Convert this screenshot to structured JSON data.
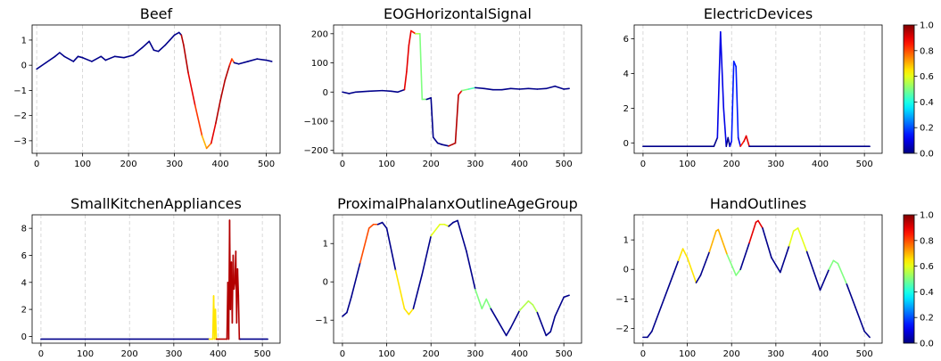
{
  "colormap": "jet",
  "line_color": "#00008b",
  "colorbar": {
    "ticks": [
      "0.0",
      "0.2",
      "0.4",
      "0.6",
      "0.8",
      "1.0"
    ]
  },
  "chart_data": [
    {
      "type": "line",
      "title": "Beef",
      "xlim": [
        -10,
        530
      ],
      "ylim": [
        -3.5,
        1.6
      ],
      "xticks": [
        0,
        100,
        200,
        300,
        400,
        500
      ],
      "yticks": [
        -3,
        -2,
        -1,
        0,
        1
      ],
      "grid": "vertical dashed",
      "series": [
        {
          "x": [
            0,
            20,
            40,
            50,
            60,
            80,
            90,
            100,
            120,
            140,
            150,
            170,
            190,
            210,
            230,
            245,
            255,
            265,
            280,
            290,
            300,
            310,
            315,
            320,
            330,
            345,
            360,
            370,
            380,
            390,
            400,
            410,
            420,
            425,
            430,
            440,
            460,
            480,
            500,
            512
          ],
          "y": [
            -0.15,
            0.1,
            0.35,
            0.5,
            0.35,
            0.15,
            0.35,
            0.3,
            0.15,
            0.35,
            0.2,
            0.35,
            0.3,
            0.4,
            0.7,
            0.95,
            0.6,
            0.55,
            0.8,
            1.0,
            1.2,
            1.3,
            1.2,
            0.8,
            -0.3,
            -1.6,
            -2.8,
            -3.3,
            -3.1,
            -2.3,
            -1.4,
            -0.6,
            0.0,
            0.25,
            0.1,
            0.05,
            0.15,
            0.25,
            0.2,
            0.15
          ],
          "attribution": [
            0,
            0,
            0,
            0,
            0,
            0,
            0,
            0,
            0,
            0,
            0,
            0,
            0,
            0,
            0,
            0,
            0,
            0,
            0,
            0,
            0,
            0,
            0,
            0.95,
            0.9,
            0.82,
            0.7,
            0.68,
            0.75,
            0.9,
            0.95,
            0.95,
            0.85,
            0.8,
            0,
            0,
            0,
            0,
            0,
            0
          ]
        }
      ]
    },
    {
      "type": "line",
      "title": "EOGHorizontalSignal",
      "xlim": [
        -20,
        540
      ],
      "ylim": [
        -210,
        230
      ],
      "xticks": [
        0,
        100,
        200,
        300,
        400,
        500
      ],
      "yticks": [
        -200,
        -100,
        0,
        100,
        200
      ],
      "grid": "vertical dashed",
      "series": [
        {
          "x": [
            0,
            15,
            30,
            60,
            90,
            110,
            125,
            140,
            145,
            150,
            155,
            165,
            175,
            180,
            190,
            200,
            205,
            215,
            225,
            240,
            255,
            262,
            270,
            285,
            300,
            320,
            340,
            360,
            380,
            400,
            420,
            440,
            460,
            480,
            500,
            512
          ],
          "y": [
            0,
            -5,
            0,
            3,
            5,
            3,
            0,
            8,
            70,
            160,
            210,
            200,
            200,
            -25,
            -25,
            -20,
            -155,
            -175,
            -180,
            -185,
            -175,
            -10,
            5,
            10,
            15,
            12,
            8,
            8,
            12,
            10,
            12,
            10,
            12,
            20,
            10,
            12
          ],
          "attribution": [
            0,
            0,
            0,
            0,
            0,
            0,
            0,
            0,
            0.9,
            0.9,
            0.85,
            0.55,
            0.5,
            0.5,
            0,
            0,
            0,
            0,
            0,
            0,
            0.95,
            0.9,
            0.5,
            0.45,
            0,
            0,
            0,
            0,
            0,
            0,
            0,
            0,
            0,
            0,
            0,
            0
          ]
        }
      ]
    },
    {
      "type": "line",
      "title": "ElectricDevices",
      "xlim": [
        -20,
        540
      ],
      "ylim": [
        -0.6,
        6.8
      ],
      "xticks": [
        0,
        100,
        200,
        300,
        400,
        500
      ],
      "yticks": [
        0,
        2,
        4,
        6
      ],
      "grid": "vertical dashed",
      "series": [
        {
          "x": [
            0,
            100,
            160,
            168,
            175,
            182,
            188,
            192,
            196,
            200,
            205,
            210,
            215,
            220,
            228,
            233,
            240,
            300,
            400,
            512
          ],
          "y": [
            -0.2,
            -0.2,
            -0.2,
            0.3,
            6.4,
            2.0,
            -0.2,
            0.3,
            -0.2,
            0.1,
            4.7,
            4.4,
            0.3,
            -0.2,
            0.1,
            0.4,
            -0.2,
            -0.2,
            -0.2,
            -0.2
          ],
          "attribution": [
            0,
            0,
            0,
            0,
            0.1,
            0.1,
            0,
            0,
            0,
            0.1,
            0.15,
            0.15,
            0.1,
            0,
            0.85,
            0.9,
            0,
            0,
            0,
            0
          ]
        }
      ]
    },
    {
      "type": "line",
      "title": "SmallKitchenAppliances",
      "xlim": [
        -20,
        540
      ],
      "ylim": [
        -0.5,
        9.0
      ],
      "xticks": [
        0,
        100,
        200,
        300,
        400,
        500
      ],
      "yticks": [
        0,
        2,
        4,
        6,
        8
      ],
      "grid": "vertical dashed",
      "series": [
        {
          "x": [
            0,
            100,
            200,
            300,
            380,
            388,
            390,
            392,
            394,
            396,
            420,
            422,
            424,
            426,
            428,
            430,
            432,
            434,
            436,
            438,
            440,
            442,
            444,
            446,
            448,
            450,
            500,
            512
          ],
          "y": [
            -0.2,
            -0.2,
            -0.2,
            -0.2,
            -0.2,
            -0.2,
            3.0,
            -0.2,
            2.0,
            -0.2,
            -0.2,
            4.0,
            -0.2,
            8.6,
            2.0,
            5.5,
            1.0,
            6.0,
            3.5,
            4.0,
            6.3,
            1.0,
            5.0,
            3.0,
            -0.2,
            -0.2,
            -0.2,
            -0.2
          ],
          "attribution": [
            0,
            0,
            0,
            0,
            0,
            0.65,
            0.65,
            0.65,
            0.65,
            0,
            0.95,
            0.95,
            0.95,
            0.95,
            0.95,
            0.95,
            0.95,
            0.95,
            0.95,
            0.95,
            0.95,
            0.95,
            0.95,
            0.95,
            0.95,
            0,
            0,
            0
          ]
        }
      ]
    },
    {
      "type": "line",
      "title": "ProximalPhalanxOutlineAgeGroup",
      "xlim": [
        -20,
        540
      ],
      "ylim": [
        -1.6,
        1.75
      ],
      "xticks": [
        0,
        100,
        200,
        300,
        400,
        500
      ],
      "yticks": [
        -1,
        0,
        1
      ],
      "grid": "vertical dashed",
      "series": [
        {
          "x": [
            0,
            10,
            20,
            40,
            60,
            70,
            80,
            90,
            100,
            120,
            140,
            150,
            160,
            180,
            200,
            220,
            230,
            240,
            250,
            260,
            280,
            300,
            315,
            325,
            335,
            350,
            370,
            380,
            400,
            420,
            430,
            440,
            460,
            470,
            480,
            500,
            512
          ],
          "y": [
            -0.9,
            -0.8,
            -0.4,
            0.5,
            1.4,
            1.5,
            1.5,
            1.55,
            1.4,
            0.3,
            -0.7,
            -0.85,
            -0.7,
            0.2,
            1.2,
            1.5,
            1.5,
            1.45,
            1.55,
            1.6,
            0.8,
            -0.2,
            -0.7,
            -0.45,
            -0.7,
            -1.0,
            -1.4,
            -1.2,
            -0.75,
            -0.5,
            -0.6,
            -0.8,
            -1.4,
            -1.3,
            -0.9,
            -0.4,
            -0.35
          ],
          "attribution": [
            0,
            0,
            0,
            0,
            0.8,
            0.8,
            0,
            0,
            0,
            0,
            0.65,
            0.65,
            0,
            0,
            0,
            0.6,
            0.6,
            0,
            0,
            0,
            0,
            0,
            0.5,
            0.5,
            0,
            0,
            0,
            0,
            0,
            0.55,
            0.55,
            0,
            0,
            0,
            0,
            0,
            0
          ]
        }
      ]
    },
    {
      "type": "line",
      "title": "HandOutlines",
      "xlim": [
        -20,
        540
      ],
      "ylim": [
        -2.5,
        1.85
      ],
      "xticks": [
        0,
        100,
        200,
        300,
        400,
        500
      ],
      "yticks": [
        -2,
        -1,
        0,
        1
      ],
      "grid": "vertical dashed",
      "series": [
        {
          "x": [
            0,
            10,
            20,
            40,
            60,
            80,
            90,
            100,
            120,
            130,
            150,
            165,
            170,
            190,
            210,
            220,
            240,
            255,
            260,
            270,
            290,
            310,
            330,
            340,
            350,
            370,
            400,
            420,
            430,
            440,
            460,
            480,
            500,
            512
          ],
          "y": [
            -2.3,
            -2.3,
            -2.1,
            -1.3,
            -0.5,
            0.3,
            0.7,
            0.4,
            -0.45,
            -0.2,
            0.6,
            1.3,
            1.35,
            0.5,
            -0.2,
            0.0,
            0.9,
            1.6,
            1.65,
            1.4,
            0.4,
            -0.1,
            0.8,
            1.3,
            1.4,
            0.6,
            -0.7,
            0.0,
            0.3,
            0.2,
            -0.5,
            -1.3,
            -2.1,
            -2.3
          ],
          "attribution": [
            0,
            0,
            0,
            0,
            0,
            0,
            0.65,
            0.65,
            0,
            0,
            0,
            0.7,
            0.7,
            0,
            0.5,
            0,
            0,
            0.9,
            0.9,
            0,
            0,
            0,
            0,
            0.6,
            0.6,
            0,
            0,
            0,
            0.5,
            0.5,
            0,
            0,
            0,
            0
          ]
        }
      ]
    }
  ]
}
